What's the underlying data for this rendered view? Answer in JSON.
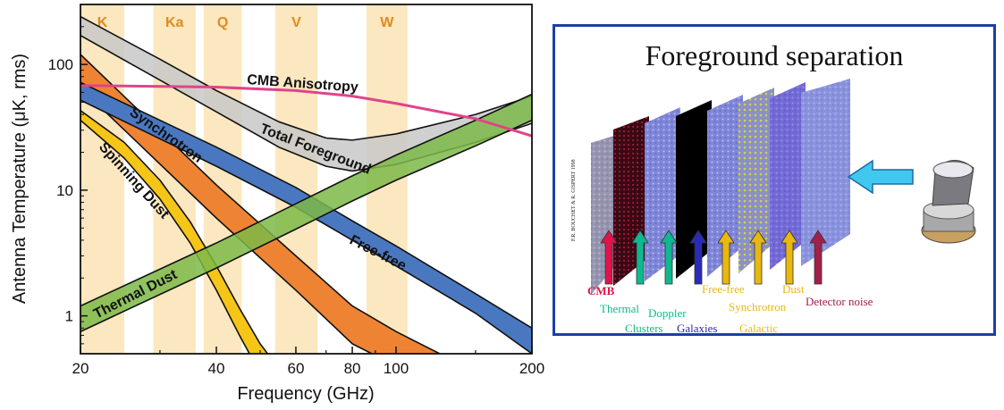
{
  "chart_data": {
    "type": "line",
    "title": "",
    "xlabel": "Frequency (GHz)",
    "ylabel": "Antenna Temperature (μK, rms)",
    "xscale": "log",
    "yscale": "log",
    "xlim": [
      20,
      200
    ],
    "ylim": [
      0.5,
      300
    ],
    "xticks": [
      20,
      40,
      60,
      80,
      100,
      200
    ],
    "yticks": [
      1,
      10,
      100
    ],
    "bands": [
      {
        "name": "K",
        "range": [
          20,
          25
        ]
      },
      {
        "name": "Ka",
        "range": [
          29,
          36
        ]
      },
      {
        "name": "Q",
        "range": [
          37.5,
          45.5
        ]
      },
      {
        "name": "V",
        "range": [
          54,
          67
        ]
      },
      {
        "name": "W",
        "range": [
          86,
          106
        ]
      }
    ],
    "series": [
      {
        "name": "Total Foreground",
        "type": "band",
        "color": "#c8c8c8",
        "x": [
          20,
          30,
          40,
          55,
          70,
          80,
          100,
          150,
          200
        ],
        "upper": [
          240,
          110,
          62,
          35,
          26,
          25,
          28,
          40,
          56
        ],
        "lower": [
          170,
          75,
          42,
          22,
          15.5,
          14.2,
          16,
          24,
          34
        ]
      },
      {
        "name": "Synchrotron",
        "type": "band",
        "color": "#ee8433",
        "x": [
          20,
          40,
          60,
          80,
          100,
          125
        ],
        "upper": [
          120,
          11,
          3,
          1.2,
          0.75,
          0.5
        ],
        "lower": [
          65,
          6,
          1.6,
          0.6,
          0.4,
          0.25
        ]
      },
      {
        "name": "Free-free",
        "type": "band",
        "color": "#4a78c0",
        "x": [
          20,
          40,
          60,
          80,
          100,
          150,
          200
        ],
        "upper": [
          72,
          22,
          10.5,
          5.7,
          3.6,
          1.5,
          0.8
        ],
        "lower": [
          52,
          15.5,
          7.3,
          4,
          2.5,
          1.05,
          0.5
        ]
      },
      {
        "name": "Spinning Dust",
        "type": "band",
        "color": "#f5c518",
        "x": [
          20,
          25,
          30,
          35,
          40,
          45,
          50,
          56
        ],
        "upper": [
          43,
          24,
          12,
          5.6,
          2.5,
          1.15,
          0.6,
          0.35
        ],
        "lower": [
          36,
          18,
          8.5,
          3.8,
          1.6,
          0.7,
          0.35,
          0.2
        ]
      },
      {
        "name": "Thermal Dust",
        "type": "band",
        "color": "#7cb848",
        "x": [
          20,
          40,
          60,
          80,
          100,
          150,
          200
        ],
        "upper": [
          1.2,
          3.8,
          7.8,
          13,
          19,
          36,
          58
        ],
        "lower": [
          0.75,
          2.4,
          4.9,
          8.2,
          12,
          22.5,
          36
        ]
      },
      {
        "name": "CMB Anisotropy",
        "type": "line",
        "color": "#e0448a",
        "x": [
          20,
          40,
          60,
          80,
          100,
          150,
          200
        ],
        "y": [
          68,
          66,
          62,
          56,
          49,
          37,
          27
        ]
      }
    ],
    "annotations": [
      "CMB Anisotropy",
      "Total Foreground",
      "Synchrotron",
      "Spinning Dust",
      "Free-free",
      "Thermal Dust"
    ]
  },
  "panel": {
    "title": "Foreground separation",
    "components": [
      {
        "label": "CMB",
        "color": "#e0144a"
      },
      {
        "label": "Thermal",
        "color": "#10b890"
      },
      {
        "label": "Clusters",
        "color": "#10b890"
      },
      {
        "label": "Doppler",
        "color": "#10b890"
      },
      {
        "label": "Galaxies",
        "color": "#2a2ab8"
      },
      {
        "label": "Free-free",
        "color": "#e8b810"
      },
      {
        "label": "Synchrotron",
        "color": "#e8b810"
      },
      {
        "label": "Galactic",
        "color": "#e8b810"
      },
      {
        "label": "Dust",
        "color": "#e8b810"
      },
      {
        "label": "Detector noise",
        "color": "#a0204a"
      }
    ],
    "credit": "F.R. BOUCHET & R. GISPERT 1998"
  }
}
